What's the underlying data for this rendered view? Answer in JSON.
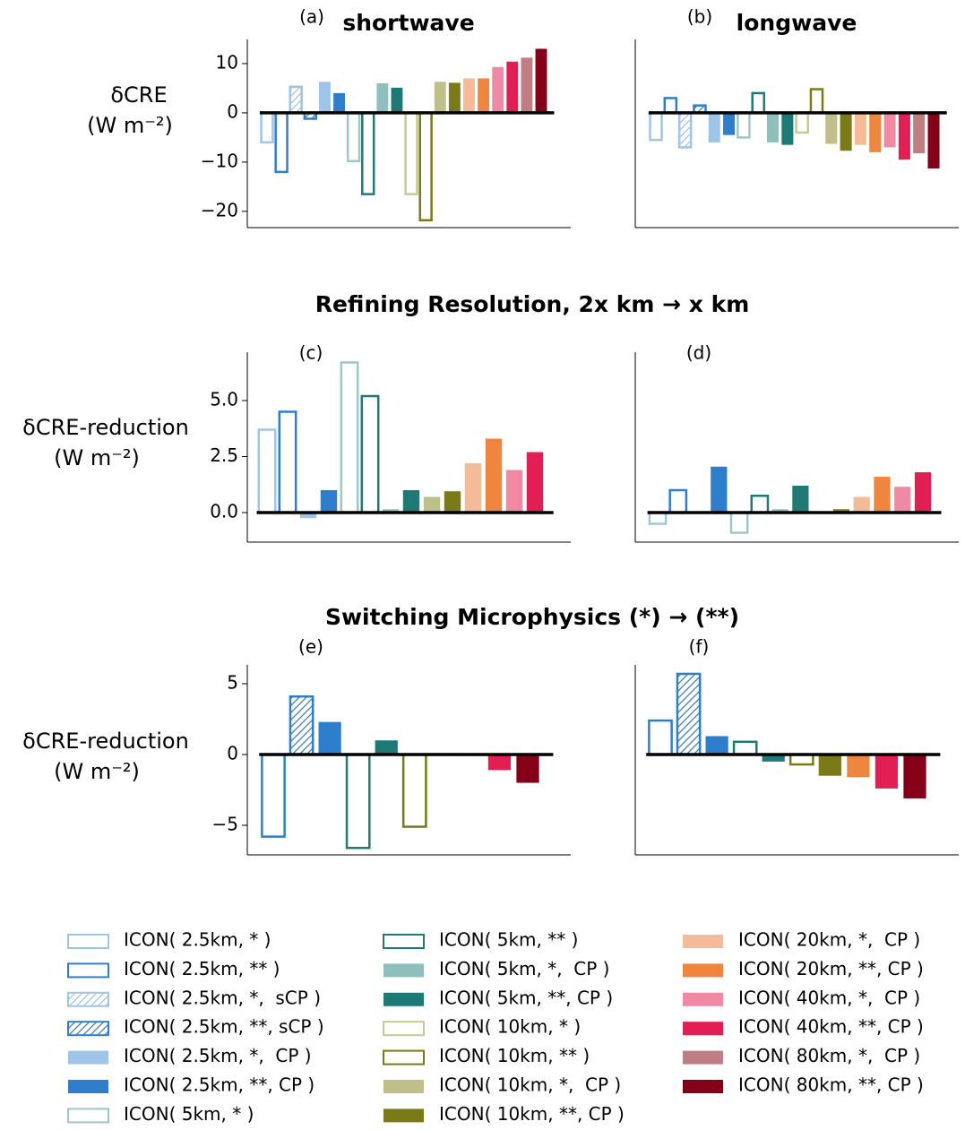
{
  "section_titles": [
    "Refining Resolution, 2x km → x km",
    "Switching Microphysics (*) → (**)"
  ],
  "legend": [
    {
      "name": "ICON( 2.5km, * )",
      "color": "#9ec4e8",
      "style": "outline"
    },
    {
      "name": "ICON( 2.5km, ** )",
      "color": "#2f7ecb",
      "style": "outline"
    },
    {
      "name": "ICON( 2.5km, *,  sCP )",
      "color": "#9ec4e8",
      "style": "hatch"
    },
    {
      "name": "ICON( 2.5km, **, sCP )",
      "color": "#2f7ecb",
      "style": "hatch"
    },
    {
      "name": "ICON( 2.5km, *,  CP )",
      "color": "#9ec4e8",
      "style": "fill"
    },
    {
      "name": "ICON( 2.5km, **, CP )",
      "color": "#2f7ecb",
      "style": "fill"
    },
    {
      "name": "ICON( 5km, * )",
      "color": "#9cc8c4",
      "style": "outline"
    },
    {
      "name": "ICON( 5km, ** )",
      "color": "#1f7a76",
      "style": "outline"
    },
    {
      "name": "ICON( 5km, *,  CP )",
      "color": "#8fbfbd",
      "style": "fill"
    },
    {
      "name": "ICON( 5km, **, CP )",
      "color": "#1f7a76",
      "style": "fill"
    },
    {
      "name": "ICON( 10km, * )",
      "color": "#c6c895",
      "style": "outline"
    },
    {
      "name": "ICON( 10km, ** )",
      "color": "#7a7a18",
      "style": "outline"
    },
    {
      "name": "ICON( 10km, *,  CP )",
      "color": "#bfbf8a",
      "style": "fill"
    },
    {
      "name": "ICON( 10km, **, CP )",
      "color": "#7a7a18",
      "style": "fill"
    },
    {
      "name": "ICON( 20km, *,  CP )",
      "color": "#f5bb98",
      "style": "fill"
    },
    {
      "name": "ICON( 20km, **, CP )",
      "color": "#ef8640",
      "style": "fill"
    },
    {
      "name": "ICON( 40km, *,  CP )",
      "color": "#f08aa4",
      "style": "fill"
    },
    {
      "name": "ICON( 40km, **, CP )",
      "color": "#e21f55",
      "style": "fill"
    },
    {
      "name": "ICON( 80km, *,  CP )",
      "color": "#c07e84",
      "style": "fill"
    },
    {
      "name": "ICON( 80km, **, CP )",
      "color": "#840018",
      "style": "fill"
    }
  ],
  "chart_data": [
    {
      "type": "bar",
      "panel_label": "(a)",
      "title": "shortwave",
      "ylabel": "δCRE",
      "ylabel_units": "(W m⁻²)",
      "ylim": [
        -23.3,
        14.9
      ],
      "yticks": [
        {
          "value": -20,
          "label": "−20"
        },
        {
          "value": -10,
          "label": "−10"
        },
        0,
        10
      ],
      "values": [
        -6,
        -12,
        5.3,
        -1.2,
        6.3,
        4,
        -9.8,
        -16.5,
        6,
        5.1,
        -16.5,
        -21.8,
        6.3,
        6.1,
        7,
        7,
        9.3,
        10.4,
        11.2,
        13
      ]
    },
    {
      "type": "bar",
      "panel_label": "(b)",
      "title": "longwave",
      "ylim": [
        -23.3,
        14.9
      ],
      "values": [
        -5.5,
        3,
        -7,
        1.5,
        -6,
        -4.5,
        -5,
        4,
        -6,
        -6.5,
        -4,
        4.8,
        -6.3,
        -7.7,
        -6.5,
        -8,
        -7,
        -9.5,
        -8.2,
        -11.3
      ]
    },
    {
      "type": "bar",
      "panel_label": "(c)",
      "ylabel": "δCRE-reduction",
      "ylabel_units": "(W m⁻²)",
      "ylim": [
        -1.32,
        7.16
      ],
      "yticks": [
        {
          "value": 0,
          "label": "0.0"
        },
        {
          "value": 2.5,
          "label": "2.5"
        },
        {
          "value": 5,
          "label": "5.0"
        }
      ],
      "values": [
        3.7,
        4.5,
        null,
        null,
        -0.25,
        1.0,
        6.7,
        5.2,
        0.15,
        1.0,
        null,
        null,
        0.7,
        0.95,
        2.2,
        3.3,
        1.9,
        2.7,
        null,
        null
      ]
    },
    {
      "type": "bar",
      "panel_label": "(d)",
      "ylim": [
        -1.32,
        7.16
      ],
      "values": [
        -0.5,
        1.0,
        null,
        null,
        0.05,
        2.05,
        -0.9,
        0.75,
        0.15,
        1.2,
        null,
        null,
        0.05,
        0.15,
        0.7,
        1.6,
        1.15,
        1.8,
        null,
        null
      ]
    },
    {
      "type": "bar",
      "panel_label": "(e)",
      "ylabel": "δCRE-reduction",
      "ylabel_units": "(W m⁻²)",
      "ylim": [
        -7.09,
        6.33
      ],
      "yticks": [
        {
          "value": -5,
          "label": "−5"
        },
        0,
        5
      ],
      "values": [
        null,
        -5.8,
        null,
        4.1,
        null,
        2.3,
        null,
        -6.6,
        null,
        1.0,
        null,
        -5.1,
        null,
        0.1,
        null,
        0,
        null,
        -1.1,
        null,
        -2.0
      ]
    },
    {
      "type": "bar",
      "panel_label": "(f)",
      "ylim": [
        -7.09,
        6.33
      ],
      "values": [
        null,
        2.4,
        null,
        5.7,
        null,
        1.3,
        null,
        0.9,
        null,
        -0.5,
        null,
        -0.7,
        null,
        -1.5,
        null,
        -1.6,
        null,
        -2.4,
        null,
        -3.1
      ]
    }
  ]
}
